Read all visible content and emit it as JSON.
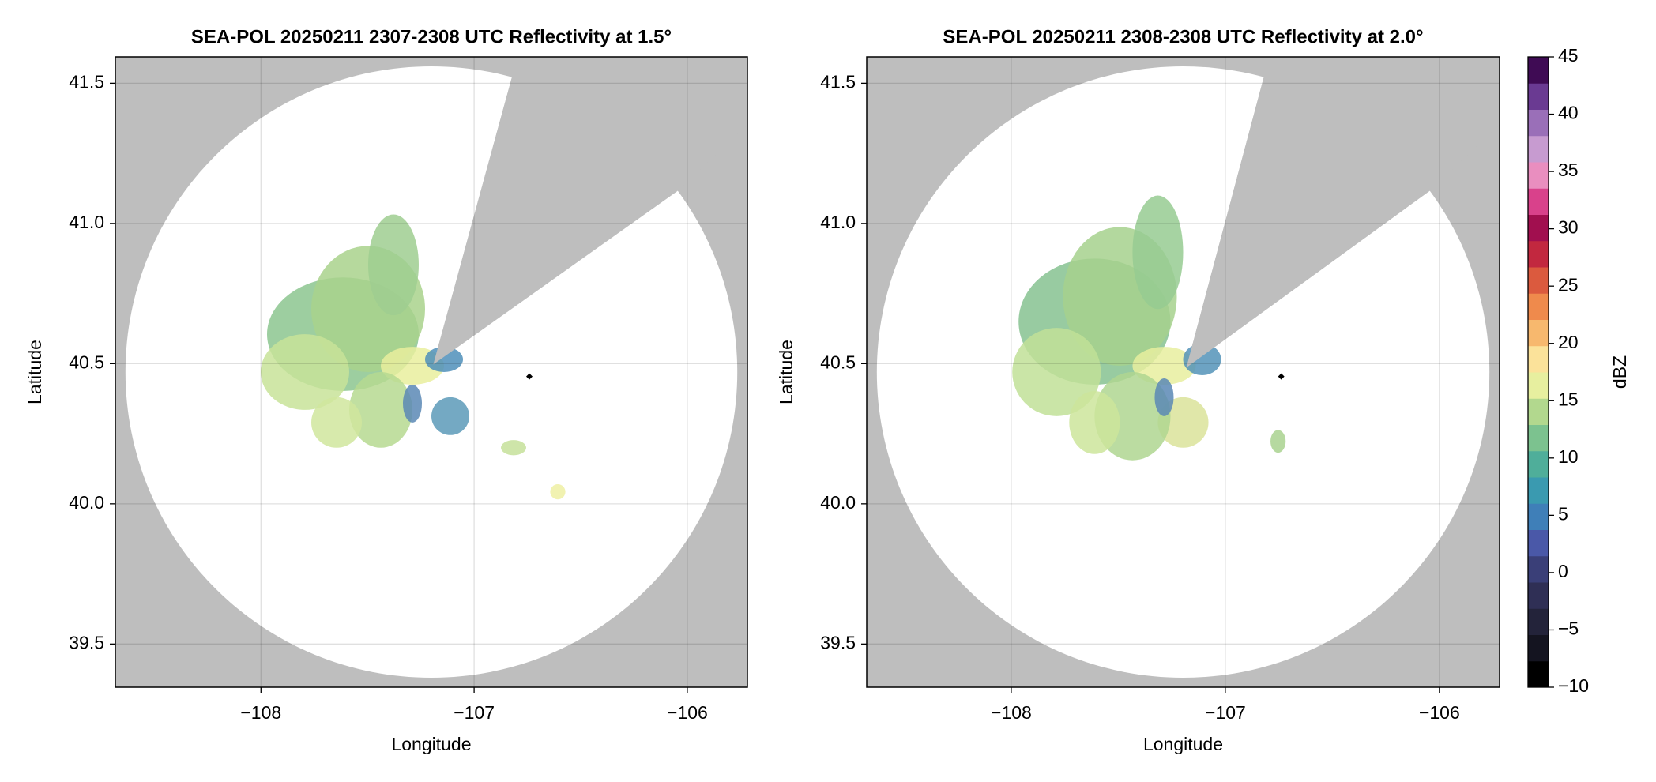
{
  "chart_data": [
    {
      "type": "map",
      "title": "SEA-POL 20250211 2307-2308 UTC Reflectivity at 1.5°",
      "xlabel": "Longitude",
      "ylabel": "Latitude",
      "xlim": [
        -108.683,
        -105.718
      ],
      "ylim": [
        39.346,
        41.594
      ],
      "xticks": [
        {
          "value": -108,
          "label": "−108"
        },
        {
          "value": -107,
          "label": "−107"
        },
        {
          "value": -106,
          "label": "−106"
        }
      ],
      "yticks": [
        39.5,
        {
          "value": 40,
          "label": "40.0"
        },
        40.5,
        {
          "value": 41,
          "label": "41.0"
        },
        41.5
      ],
      "grid": true
    },
    {
      "type": "map",
      "title": "SEA-POL 20250211 2308-2308 UTC Reflectivity at 2.0°",
      "xlabel": "Longitude",
      "ylabel": "Latitude",
      "xlim": [
        -108.675,
        -105.719
      ],
      "ylim": [
        39.346,
        41.594
      ],
      "xticks": [
        {
          "value": -108,
          "label": "−108"
        },
        {
          "value": -107,
          "label": "−107"
        },
        {
          "value": -106,
          "label": "−106"
        }
      ],
      "yticks": [
        39.5,
        {
          "value": 40,
          "label": "40.0"
        },
        40.5,
        {
          "value": 41,
          "label": "41.0"
        },
        41.5
      ],
      "grid": true
    },
    {
      "type": "colorbar",
      "label": "dBZ",
      "lim": [
        -10,
        45
      ],
      "ticks": [
        {
          "value": -10,
          "label": "−10"
        },
        {
          "value": -5,
          "label": "−5"
        },
        0,
        5,
        10,
        15,
        20,
        25,
        30,
        35,
        40,
        45
      ],
      "colors": [
        "#000000",
        "#141420",
        "#23233a",
        "#2f2f55",
        "#3a3f78",
        "#4a58a8",
        "#3f7fb8",
        "#3a9ab0",
        "#4fae9a",
        "#7cc28f",
        "#b2d88e",
        "#e7ef9f",
        "#fbe29a",
        "#f7b86e",
        "#ef8a4c",
        "#db5a3e",
        "#c2283f",
        "#a10f4f",
        "#d9418b",
        "#e98ebf",
        "#c79bd0",
        "#9a6fb8",
        "#6a3a92",
        "#3f0b54"
      ]
    }
  ]
}
